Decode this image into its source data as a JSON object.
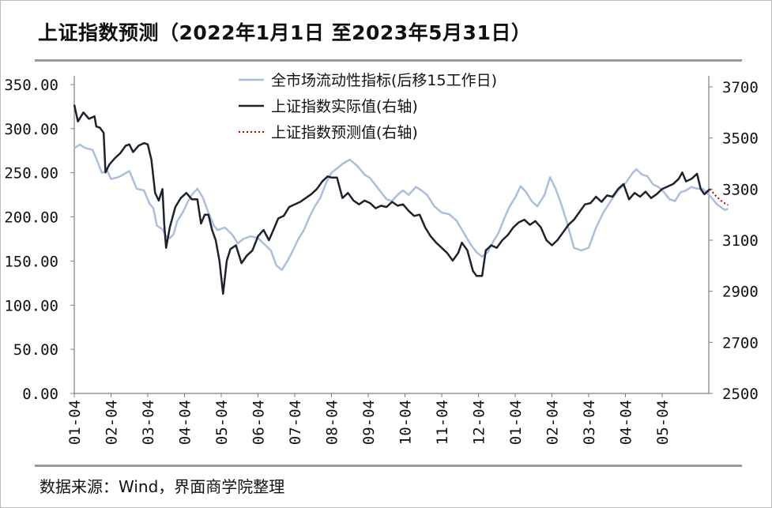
{
  "title": "上证指数预测（2022年1月1日 至2023年5月31日）",
  "source": "数据来源：Wind，界面商学院整理",
  "chart_data": {
    "type": "line",
    "title": "上证指数预测（2022年1月1日 至2023年5月31日）",
    "x_tick_labels": [
      "01-04",
      "02-04",
      "03-04",
      "04-04",
      "05-04",
      "06-04",
      "07-04",
      "08-04",
      "09-04",
      "10-04",
      "11-04",
      "12-04",
      "01-04",
      "02-04",
      "03-04",
      "04-04",
      "05-04"
    ],
    "y_left": {
      "ticks": [
        "0.00",
        "50.00",
        "100.00",
        "150.00",
        "200.00",
        "250.00",
        "300.00",
        "350.00"
      ],
      "range": [
        0,
        350
      ]
    },
    "y_right": {
      "ticks": [
        "2500",
        "2700",
        "2900",
        "3100",
        "3300",
        "3500",
        "3700"
      ],
      "range": [
        2500,
        3700
      ]
    },
    "x_range_months": [
      0,
      16.9
    ],
    "legend_position": "top",
    "series": [
      {
        "name": "全市场流动性指标(后移15工作日)",
        "axis": "left",
        "color": "#a9bfdf",
        "style": "solid",
        "points": [
          [
            0,
            278
          ],
          [
            0.15,
            282
          ],
          [
            0.3,
            278
          ],
          [
            0.5,
            276
          ],
          [
            0.6,
            266
          ],
          [
            0.75,
            250
          ],
          [
            0.9,
            252
          ],
          [
            1,
            243
          ],
          [
            1.2,
            245
          ],
          [
            1.5,
            252
          ],
          [
            1.7,
            232
          ],
          [
            1.9,
            230
          ],
          [
            2.05,
            215
          ],
          [
            2.15,
            210
          ],
          [
            2.25,
            190
          ],
          [
            2.4,
            186
          ],
          [
            2.5,
            178
          ],
          [
            2.6,
            176
          ],
          [
            2.7,
            180
          ],
          [
            2.8,
            195
          ],
          [
            2.95,
            205
          ],
          [
            3.1,
            218
          ],
          [
            3.2,
            225
          ],
          [
            3.35,
            232
          ],
          [
            3.5,
            222
          ],
          [
            3.65,
            205
          ],
          [
            3.8,
            190
          ],
          [
            3.9,
            185
          ],
          [
            4.1,
            188
          ],
          [
            4.3,
            180
          ],
          [
            4.45,
            170
          ],
          [
            4.6,
            175
          ],
          [
            4.8,
            178
          ],
          [
            5,
            176
          ],
          [
            5.2,
            168
          ],
          [
            5.35,
            162
          ],
          [
            5.5,
            145
          ],
          [
            5.65,
            140
          ],
          [
            5.8,
            150
          ],
          [
            5.95,
            162
          ],
          [
            6.1,
            175
          ],
          [
            6.25,
            185
          ],
          [
            6.4,
            200
          ],
          [
            6.55,
            212
          ],
          [
            6.7,
            222
          ],
          [
            6.85,
            238
          ],
          [
            7,
            250
          ],
          [
            7.15,
            255
          ],
          [
            7.3,
            260
          ],
          [
            7.5,
            265
          ],
          [
            7.7,
            258
          ],
          [
            7.9,
            248
          ],
          [
            8.05,
            244
          ],
          [
            8.2,
            236
          ],
          [
            8.35,
            228
          ],
          [
            8.5,
            220
          ],
          [
            8.65,
            218
          ],
          [
            8.8,
            225
          ],
          [
            8.95,
            230
          ],
          [
            9.1,
            225
          ],
          [
            9.3,
            234
          ],
          [
            9.45,
            230
          ],
          [
            9.6,
            225
          ],
          [
            9.8,
            212
          ],
          [
            10,
            205
          ],
          [
            10.2,
            203
          ],
          [
            10.4,
            196
          ],
          [
            10.6,
            182
          ],
          [
            10.8,
            168
          ],
          [
            10.95,
            160
          ],
          [
            11.1,
            155
          ],
          [
            11.25,
            160
          ],
          [
            11.4,
            172
          ],
          [
            11.55,
            182
          ],
          [
            11.7,
            198
          ],
          [
            11.85,
            212
          ],
          [
            12,
            222
          ],
          [
            12.15,
            235
          ],
          [
            12.3,
            228
          ],
          [
            12.45,
            218
          ],
          [
            12.6,
            212
          ],
          [
            12.8,
            225
          ],
          [
            12.95,
            245
          ],
          [
            13.1,
            232
          ],
          [
            13.25,
            215
          ],
          [
            13.4,
            195
          ],
          [
            13.6,
            165
          ],
          [
            13.8,
            162
          ],
          [
            14,
            165
          ],
          [
            14.2,
            188
          ],
          [
            14.4,
            205
          ],
          [
            14.6,
            218
          ],
          [
            14.8,
            230
          ],
          [
            15,
            238
          ],
          [
            15.2,
            250
          ],
          [
            15.3,
            254
          ],
          [
            15.45,
            248
          ],
          [
            15.6,
            246
          ],
          [
            15.75,
            237
          ],
          [
            15.9,
            234
          ],
          [
            16.05,
            228
          ],
          [
            16.2,
            220
          ],
          [
            16.35,
            218
          ],
          [
            16.5,
            228
          ],
          [
            16.65,
            230
          ],
          [
            16.8,
            234
          ],
          [
            16.95,
            232
          ],
          [
            17.1,
            232
          ],
          [
            17.3,
            224
          ],
          [
            17.5,
            214
          ],
          [
            17.7,
            208
          ],
          [
            17.8,
            209
          ]
        ]
      },
      {
        "name": "上证指数实际值(右轴)",
        "axis": "right",
        "color": "#1d232d",
        "style": "solid",
        "points": [
          [
            0,
            3630
          ],
          [
            0.1,
            3565
          ],
          [
            0.25,
            3600
          ],
          [
            0.4,
            3575
          ],
          [
            0.55,
            3585
          ],
          [
            0.6,
            3545
          ],
          [
            0.7,
            3540
          ],
          [
            0.8,
            3520
          ],
          [
            0.85,
            3365
          ],
          [
            0.95,
            3395
          ],
          [
            1.1,
            3420
          ],
          [
            1.25,
            3440
          ],
          [
            1.4,
            3470
          ],
          [
            1.5,
            3475
          ],
          [
            1.6,
            3445
          ],
          [
            1.75,
            3470
          ],
          [
            1.9,
            3480
          ],
          [
            2,
            3475
          ],
          [
            2.1,
            3415
          ],
          [
            2.2,
            3285
          ],
          [
            2.3,
            3255
          ],
          [
            2.4,
            3300
          ],
          [
            2.45,
            3160
          ],
          [
            2.5,
            3070
          ],
          [
            2.6,
            3150
          ],
          [
            2.75,
            3230
          ],
          [
            2.9,
            3265
          ],
          [
            3.05,
            3285
          ],
          [
            3.2,
            3260
          ],
          [
            3.35,
            3260
          ],
          [
            3.45,
            3165
          ],
          [
            3.55,
            3200
          ],
          [
            3.65,
            3200
          ],
          [
            3.75,
            3140
          ],
          [
            3.85,
            3100
          ],
          [
            3.95,
            3020
          ],
          [
            4.05,
            2890
          ],
          [
            4.15,
            3020
          ],
          [
            4.25,
            3065
          ],
          [
            4.4,
            3080
          ],
          [
            4.55,
            3010
          ],
          [
            4.7,
            3040
          ],
          [
            4.85,
            3060
          ],
          [
            5.0,
            3115
          ],
          [
            5.15,
            3140
          ],
          [
            5.3,
            3100
          ],
          [
            5.45,
            3150
          ],
          [
            5.55,
            3185
          ],
          [
            5.7,
            3195
          ],
          [
            5.85,
            3230
          ],
          [
            6.0,
            3240
          ],
          [
            6.15,
            3250
          ],
          [
            6.3,
            3265
          ],
          [
            6.45,
            3280
          ],
          [
            6.6,
            3300
          ],
          [
            6.75,
            3330
          ],
          [
            6.9,
            3350
          ],
          [
            7.0,
            3345
          ],
          [
            7.15,
            3345
          ],
          [
            7.3,
            3265
          ],
          [
            7.45,
            3285
          ],
          [
            7.6,
            3255
          ],
          [
            7.75,
            3240
          ],
          [
            7.9,
            3255
          ],
          [
            8.05,
            3245
          ],
          [
            8.2,
            3225
          ],
          [
            8.35,
            3235
          ],
          [
            8.5,
            3230
          ],
          [
            8.65,
            3250
          ],
          [
            8.8,
            3235
          ],
          [
            8.95,
            3240
          ],
          [
            9.1,
            3215
          ],
          [
            9.25,
            3195
          ],
          [
            9.4,
            3200
          ],
          [
            9.55,
            3150
          ],
          [
            9.7,
            3115
          ],
          [
            9.85,
            3090
          ],
          [
            10.0,
            3070
          ],
          [
            10.15,
            3050
          ],
          [
            10.3,
            3020
          ],
          [
            10.45,
            3050
          ],
          [
            10.55,
            3090
          ],
          [
            10.7,
            3060
          ],
          [
            10.85,
            2980
          ],
          [
            10.95,
            2960
          ],
          [
            11.1,
            2960
          ],
          [
            11.2,
            3060
          ],
          [
            11.35,
            3080
          ],
          [
            11.5,
            3070
          ],
          [
            11.65,
            3100
          ],
          [
            11.8,
            3120
          ],
          [
            11.95,
            3150
          ],
          [
            12.1,
            3170
          ],
          [
            12.25,
            3180
          ],
          [
            12.4,
            3160
          ],
          [
            12.55,
            3175
          ],
          [
            12.7,
            3150
          ],
          [
            12.85,
            3100
          ],
          [
            13.0,
            3080
          ],
          [
            13.15,
            3100
          ],
          [
            13.3,
            3130
          ],
          [
            13.45,
            3160
          ],
          [
            13.6,
            3180
          ],
          [
            13.75,
            3210
          ],
          [
            13.9,
            3240
          ],
          [
            14.05,
            3245
          ],
          [
            14.2,
            3270
          ],
          [
            14.35,
            3250
          ],
          [
            14.5,
            3275
          ],
          [
            14.65,
            3270
          ],
          [
            14.8,
            3300
          ],
          [
            14.95,
            3320
          ],
          [
            15.1,
            3260
          ],
          [
            15.25,
            3285
          ],
          [
            15.4,
            3270
          ],
          [
            15.55,
            3290
          ],
          [
            15.7,
            3265
          ],
          [
            15.85,
            3280
          ],
          [
            16.0,
            3300
          ],
          [
            16.15,
            3310
          ],
          [
            16.3,
            3320
          ],
          [
            16.45,
            3340
          ],
          [
            16.55,
            3365
          ],
          [
            16.65,
            3330
          ],
          [
            16.8,
            3340
          ],
          [
            16.95,
            3360
          ],
          [
            17.05,
            3300
          ],
          [
            17.15,
            3280
          ],
          [
            17.3,
            3300
          ]
        ]
      },
      {
        "name": "上证指数预测值(右轴)",
        "axis": "right",
        "color": "#c00000",
        "style": "dotted",
        "points": [
          [
            17.3,
            3300
          ],
          [
            17.45,
            3275
          ],
          [
            17.6,
            3255
          ],
          [
            17.75,
            3240
          ],
          [
            17.8,
            3238
          ]
        ]
      }
    ]
  }
}
